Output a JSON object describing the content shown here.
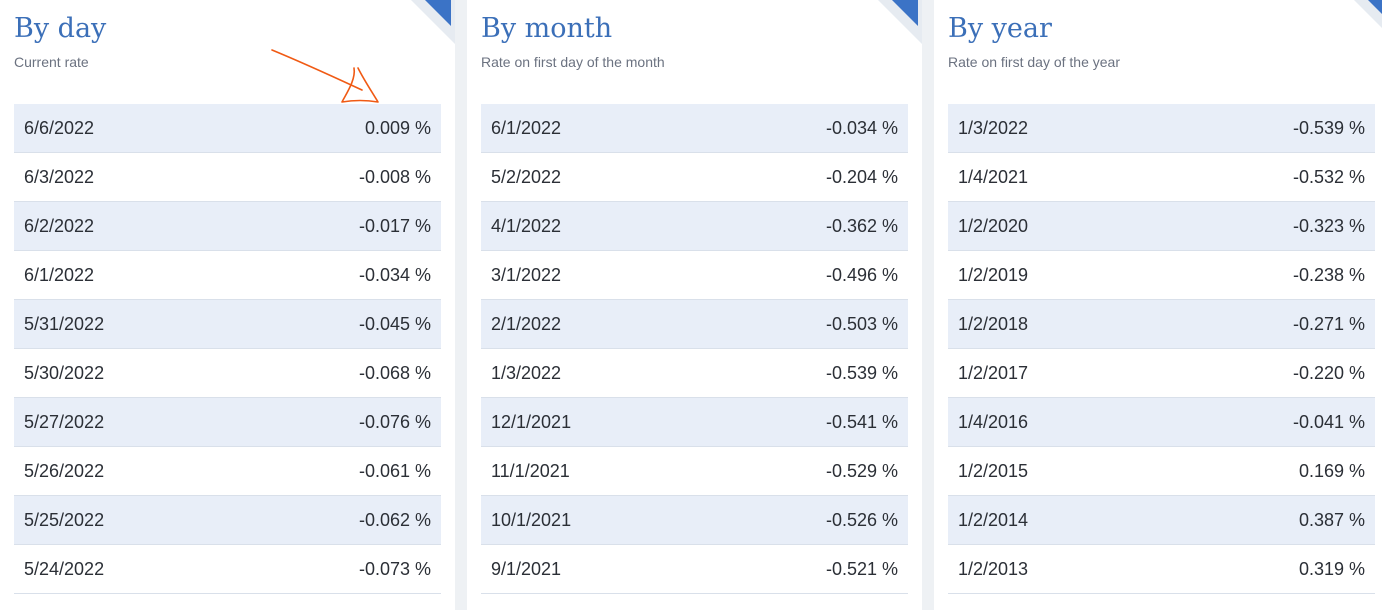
{
  "panels": [
    {
      "title": "By day",
      "subtitle": "Current rate",
      "rows": [
        {
          "date": "6/6/2022",
          "rate": "0.009 %"
        },
        {
          "date": "6/3/2022",
          "rate": "-0.008 %"
        },
        {
          "date": "6/2/2022",
          "rate": "-0.017 %"
        },
        {
          "date": "6/1/2022",
          "rate": "-0.034 %"
        },
        {
          "date": "5/31/2022",
          "rate": "-0.045 %"
        },
        {
          "date": "5/30/2022",
          "rate": "-0.068 %"
        },
        {
          "date": "5/27/2022",
          "rate": "-0.076 %"
        },
        {
          "date": "5/26/2022",
          "rate": "-0.061 %"
        },
        {
          "date": "5/25/2022",
          "rate": "-0.062 %"
        },
        {
          "date": "5/24/2022",
          "rate": "-0.073 %"
        }
      ]
    },
    {
      "title": "By month",
      "subtitle": "Rate on first day of the month",
      "rows": [
        {
          "date": "6/1/2022",
          "rate": "-0.034 %"
        },
        {
          "date": "5/2/2022",
          "rate": "-0.204 %"
        },
        {
          "date": "4/1/2022",
          "rate": "-0.362 %"
        },
        {
          "date": "3/1/2022",
          "rate": "-0.496 %"
        },
        {
          "date": "2/1/2022",
          "rate": "-0.503 %"
        },
        {
          "date": "1/3/2022",
          "rate": "-0.539 %"
        },
        {
          "date": "12/1/2021",
          "rate": "-0.541 %"
        },
        {
          "date": "11/1/2021",
          "rate": "-0.529 %"
        },
        {
          "date": "10/1/2021",
          "rate": "-0.526 %"
        },
        {
          "date": "9/1/2021",
          "rate": "-0.521 %"
        }
      ]
    },
    {
      "title": "By year",
      "subtitle": "Rate on first day of the year",
      "rows": [
        {
          "date": "1/3/2022",
          "rate": "-0.539 %"
        },
        {
          "date": "1/4/2021",
          "rate": "-0.532 %"
        },
        {
          "date": "1/2/2020",
          "rate": "-0.323 %"
        },
        {
          "date": "1/2/2019",
          "rate": "-0.238 %"
        },
        {
          "date": "1/2/2018",
          "rate": "-0.271 %"
        },
        {
          "date": "1/2/2017",
          "rate": "-0.220 %"
        },
        {
          "date": "1/4/2016",
          "rate": "-0.041 %"
        },
        {
          "date": "1/2/2015",
          "rate": "0.169 %"
        },
        {
          "date": "1/2/2014",
          "rate": "0.387 %"
        },
        {
          "date": "1/2/2013",
          "rate": "0.319 %"
        }
      ]
    }
  ],
  "colors": {
    "accent": "#3b73c6",
    "title": "#3b6fb8",
    "stripe": "#e8eef8",
    "annotation": "#f05a14"
  },
  "icons": {
    "corner": "corner-triangle-icon",
    "annotation": "hand-drawn-arrow-icon"
  }
}
